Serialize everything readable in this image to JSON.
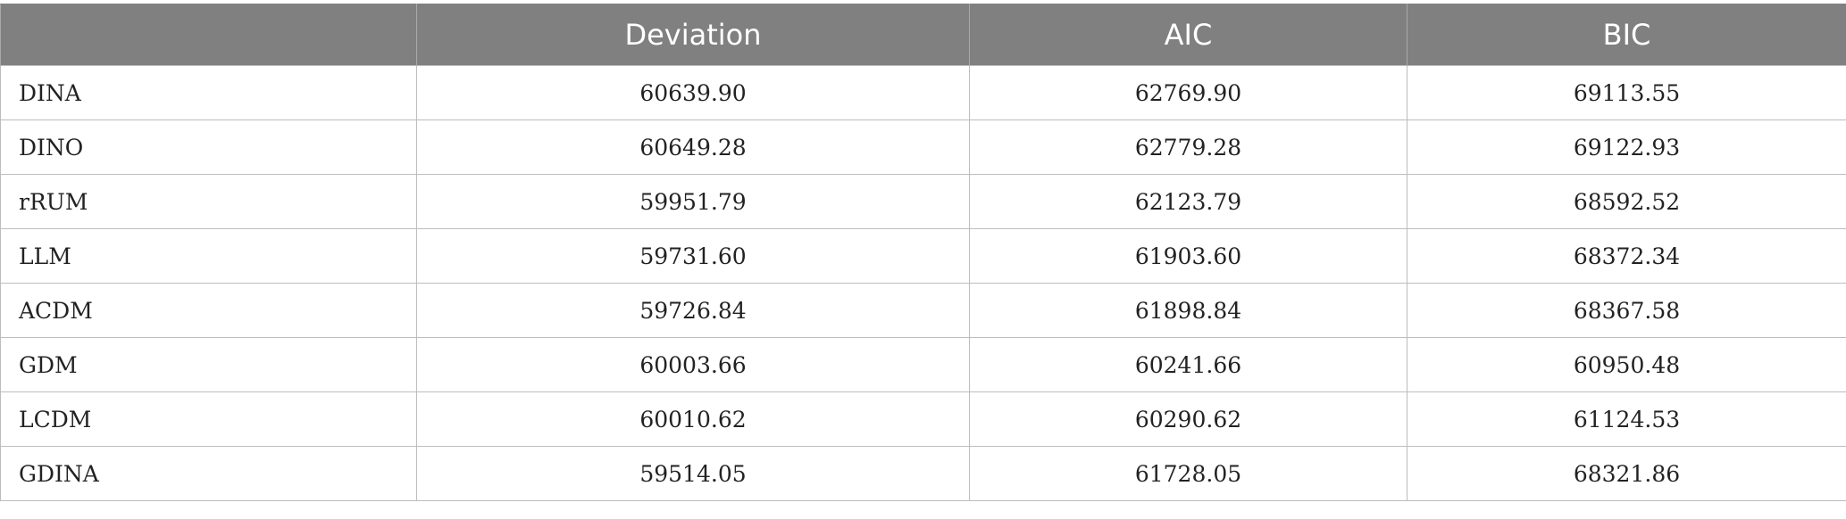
{
  "table": {
    "headers": [
      "",
      "Deviation",
      "AIC",
      "BIC"
    ],
    "rows": [
      [
        "DINA",
        "60639.90",
        "62769.90",
        "69113.55"
      ],
      [
        "DINO",
        "60649.28",
        "62779.28",
        "69122.93"
      ],
      [
        "rRUM",
        "59951.79",
        "62123.79",
        "68592.52"
      ],
      [
        "LLM",
        "59731.60",
        "61903.60",
        "68372.34"
      ],
      [
        "ACDM",
        "59726.84",
        "61898.84",
        "68367.58"
      ],
      [
        "GDM",
        "60003.66",
        "60241.66",
        "60950.48"
      ],
      [
        "LCDM",
        "60010.62",
        "60290.62",
        "61124.53"
      ],
      [
        "GDINA",
        "59514.05",
        "61728.05",
        "68321.86"
      ]
    ]
  },
  "colors": {
    "header_bg": "#808080",
    "header_text": "#ffffff",
    "border": "#bdbdbd"
  }
}
